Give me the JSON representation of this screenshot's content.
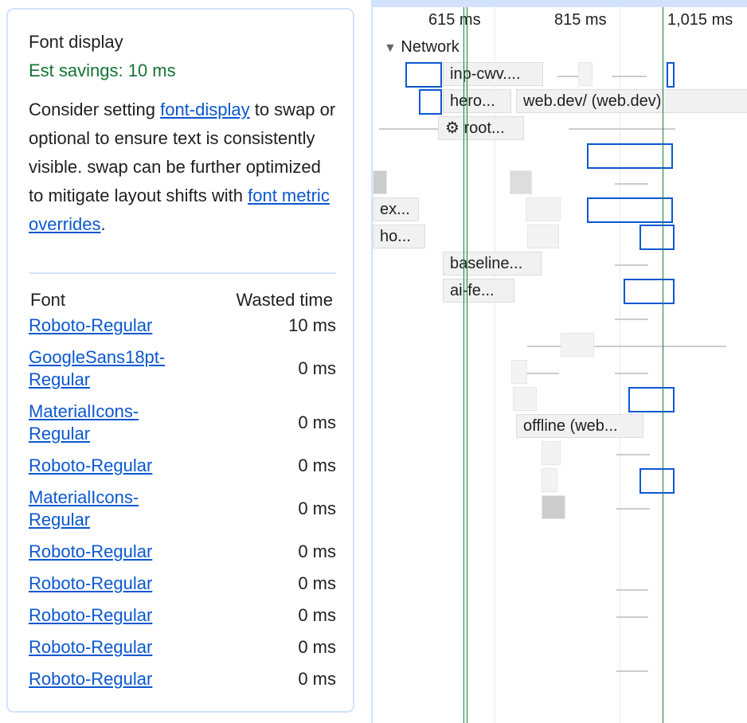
{
  "insight": {
    "title": "Font display",
    "savings": "Est savings: 10 ms",
    "desc": {
      "p1": "Consider setting ",
      "link1": "font-display",
      "p2": " to swap or optional to ensure text is consistently visible. swap can be further optimized to mitigate layout shifts with ",
      "link2": "font metric overrides",
      "p3": "."
    },
    "table": {
      "headers": [
        "Font",
        "Wasted time"
      ],
      "rows": [
        {
          "font": "Roboto-Regular",
          "time": "10 ms"
        },
        {
          "font": "GoogleSans18pt-Regular",
          "time": "0 ms"
        },
        {
          "font": "MaterialIcons-Regular",
          "time": "0 ms"
        },
        {
          "font": "Roboto-Regular",
          "time": "0 ms"
        },
        {
          "font": "MaterialIcons-Regular",
          "time": "0 ms"
        },
        {
          "font": "Roboto-Regular",
          "time": "0 ms"
        },
        {
          "font": "Roboto-Regular",
          "time": "0 ms"
        },
        {
          "font": "Roboto-Regular",
          "time": "0 ms"
        },
        {
          "font": "Roboto-Regular",
          "time": "0 ms"
        },
        {
          "font": "Roboto-Regular",
          "time": "0 ms"
        }
      ]
    }
  },
  "timeline": {
    "ticks": [
      "615 ms",
      "815 ms",
      "1,015 ms"
    ],
    "track": "Network",
    "requests": [
      "inp-cwv....",
      "hero...",
      "web.dev/ (web.dev)",
      "⚙ root...",
      "ex...",
      "ho...",
      "baseline...",
      "ai-fe...",
      "offline (web..."
    ]
  },
  "colors": {
    "savings": "#137333",
    "link": "#0b57d0",
    "selection": "#0b57d0",
    "marker": "#188038"
  }
}
